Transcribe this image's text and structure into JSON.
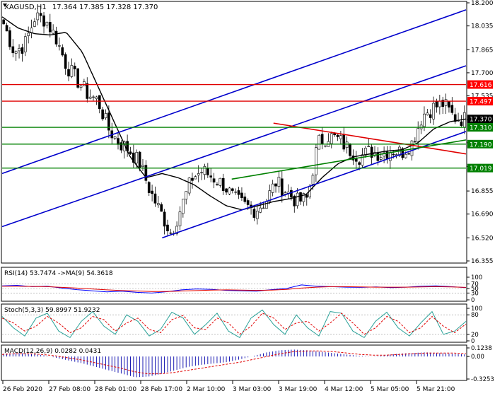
{
  "header": {
    "symbol": "XAGUSD,H1",
    "ohlc": "17.364 17.385 17.328 17.370"
  },
  "colors": {
    "background": "#ffffff",
    "frame": "#000000",
    "bull_candle": "#ffffff",
    "bear_candle": "#000000",
    "ma_line": "#000000",
    "channel": "#0000cc",
    "resistance": "#e00000",
    "support": "#008000",
    "rsi": "#0000ff",
    "rsi_ma": "#e00000",
    "stoch_main": "#2aa198",
    "stoch_signal": "#e00000",
    "macd_hist": "#0000aa",
    "macd_signal": "#e00000",
    "badge_red": "#ff0000",
    "badge_green": "#008000",
    "badge_black": "#000000"
  },
  "x_axis_labels": [
    "26 Feb 2020",
    "27 Feb 08:00",
    "28 Feb 01:00",
    "28 Feb 17:00",
    "2 Mar 10:00",
    "3 Mar 03:00",
    "3 Mar 19:00",
    "4 Mar 12:00",
    "5 Mar 05:00",
    "5 Mar 21:00"
  ],
  "chart_data": [
    {
      "type": "candlestick",
      "title": "XAGUSD,H1",
      "ylim": [
        16.35,
        18.2
      ],
      "y_ticks": [
        "18.200",
        "18.035",
        "17.865",
        "17.700",
        "17.535",
        "17.365",
        "17.200",
        "17.030",
        "16.855",
        "16.690",
        "16.520",
        "16.355"
      ],
      "close_path": [
        18.05,
        17.85,
        17.9,
        18.1,
        18.08,
        17.95,
        17.75,
        17.65,
        17.55,
        17.5,
        17.3,
        17.2,
        17.15,
        17.05,
        16.85,
        16.7,
        16.55,
        16.75,
        16.95,
        17.0,
        16.95,
        16.9,
        16.8,
        16.75,
        16.72,
        16.78,
        16.92,
        16.85,
        16.78,
        16.8,
        17.2,
        17.25,
        17.22,
        17.15,
        17.1,
        17.14,
        17.12,
        17.15,
        17.13,
        17.2,
        17.4,
        17.45,
        17.48,
        17.38,
        17.37
      ],
      "moving_average_path": [
        18.1,
        18.02,
        17.98,
        17.97,
        17.99,
        17.85,
        17.6,
        17.35,
        17.1,
        16.95,
        16.98,
        16.95,
        16.9,
        16.82,
        16.75,
        16.72,
        16.75,
        16.78,
        16.8,
        16.83,
        16.95,
        17.05,
        17.1,
        17.12,
        17.14,
        17.15,
        17.2,
        17.3,
        17.35,
        17.37
      ],
      "horizontal_levels": [
        {
          "kind": "resistance",
          "value": 17.616,
          "label": "17.616"
        },
        {
          "kind": "resistance",
          "value": 17.497,
          "label": "17.497"
        },
        {
          "kind": "current",
          "value": 17.37,
          "label": "17.370"
        },
        {
          "kind": "support",
          "value": 17.31,
          "label": "17.310"
        },
        {
          "kind": "support",
          "value": 17.19,
          "label": "17.190"
        },
        {
          "kind": "support",
          "value": 17.019,
          "label": "17.019"
        }
      ],
      "trendlines": [
        {
          "kind": "channel",
          "from": [
            0.0,
            16.98
          ],
          "to": [
            1.0,
            18.15
          ]
        },
        {
          "kind": "channel",
          "from": [
            0.0,
            16.6
          ],
          "to": [
            1.0,
            17.75
          ]
        },
        {
          "kind": "channel",
          "from": [
            0.345,
            16.52
          ],
          "to": [
            1.0,
            17.28
          ]
        },
        {
          "kind": "resistance",
          "from": [
            0.585,
            17.34
          ],
          "to": [
            1.0,
            17.12
          ]
        },
        {
          "kind": "support",
          "from": [
            0.495,
            16.94
          ],
          "to": [
            1.0,
            17.22
          ]
        }
      ]
    },
    {
      "type": "line",
      "title": "RSI(14) 53.7474 ->MA(9) 54.3618",
      "ylim": [
        0,
        100
      ],
      "y_ticks": [
        "100",
        "70",
        "50",
        "30",
        "0"
      ],
      "series": [
        {
          "name": "RSI(14)",
          "values": [
            62,
            64,
            58,
            60,
            52,
            45,
            40,
            35,
            38,
            33,
            30,
            36,
            44,
            48,
            46,
            42,
            40,
            38,
            45,
            50,
            66,
            60,
            58,
            56,
            55,
            57,
            54,
            56,
            60,
            62,
            58,
            54
          ]
        },
        {
          "name": "MA(9)",
          "values": [
            60,
            60,
            59,
            58,
            55,
            52,
            48,
            44,
            41,
            39,
            37,
            37,
            39,
            41,
            43,
            44,
            43,
            42,
            43,
            46,
            52,
            56,
            58,
            58,
            57,
            56,
            56,
            56,
            57,
            58,
            57,
            55
          ]
        }
      ]
    },
    {
      "type": "line",
      "title": "Stoch(5,3,3) 59.8997 51.9232",
      "ylim": [
        0,
        100
      ],
      "y_ticks": [
        "100",
        "80",
        "20",
        "0"
      ],
      "series": [
        {
          "name": "Main",
          "values": [
            75,
            40,
            15,
            70,
            85,
            30,
            10,
            60,
            90,
            45,
            20,
            80,
            60,
            15,
            35,
            88,
            70,
            20,
            50,
            85,
            30,
            10,
            70,
            95,
            50,
            20,
            80,
            40,
            15,
            90,
            85,
            30,
            10,
            60,
            88,
            40,
            15,
            55,
            90,
            20,
            30,
            60
          ]
        },
        {
          "name": "Signal",
          "values": [
            70,
            55,
            30,
            45,
            75,
            55,
            25,
            40,
            75,
            65,
            30,
            55,
            70,
            35,
            25,
            65,
            78,
            40,
            35,
            70,
            55,
            20,
            45,
            85,
            70,
            35,
            55,
            60,
            30,
            55,
            85,
            55,
            20,
            40,
            75,
            60,
            25,
            40,
            75,
            45,
            25,
            52
          ]
        }
      ]
    },
    {
      "type": "bar",
      "title": "MACD(12,26,9) 0.0282 0.0431",
      "ylim": [
        -0.3253,
        0.1238
      ],
      "y_ticks": [
        "0.1238",
        "0.00",
        "-0.3253"
      ],
      "series": [
        {
          "name": "MACD",
          "values": [
            0.04,
            0.05,
            0.04,
            0.02,
            -0.02,
            -0.06,
            -0.1,
            -0.15,
            -0.2,
            -0.25,
            -0.3,
            -0.29,
            -0.25,
            -0.2,
            -0.15,
            -0.12,
            -0.1,
            -0.08,
            -0.04,
            0.01,
            0.06,
            0.09,
            0.1,
            0.09,
            0.07,
            0.05,
            0.03,
            0.01,
            0.0,
            0.02,
            0.04,
            0.05,
            0.06,
            0.05,
            0.04,
            0.03
          ]
        },
        {
          "name": "Signal",
          "values": [
            0.03,
            0.04,
            0.04,
            0.03,
            0.01,
            -0.02,
            -0.05,
            -0.09,
            -0.13,
            -0.17,
            -0.22,
            -0.25,
            -0.25,
            -0.23,
            -0.2,
            -0.17,
            -0.14,
            -0.11,
            -0.08,
            -0.04,
            0.0,
            0.04,
            0.07,
            0.08,
            0.08,
            0.07,
            0.05,
            0.03,
            0.02,
            0.02,
            0.03,
            0.04,
            0.05,
            0.05,
            0.05,
            0.04
          ]
        }
      ]
    }
  ]
}
